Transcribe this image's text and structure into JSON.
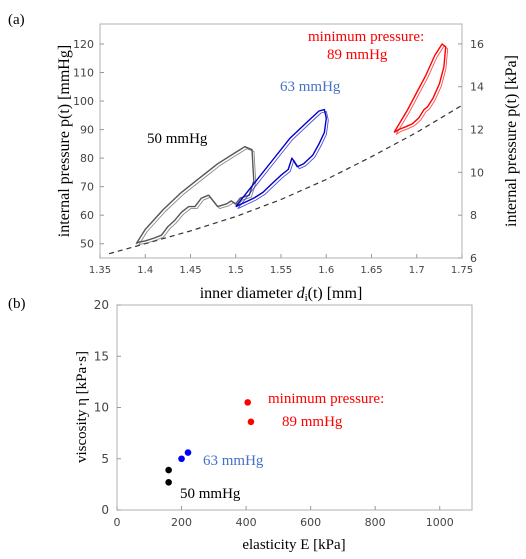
{
  "chart_data": [
    {
      "panel_label": "(a)",
      "type": "line",
      "xlabel_prefix": "inner diameter ",
      "xlabel_var": "d",
      "xlabel_sub": "i",
      "xlabel_suffix": "(t) [mm]",
      "ylabel_left": "internal pressure p(t) [mmHg]",
      "ylabel_right": "internal pressure p(t) [kPa]",
      "xlim": [
        1.35,
        1.75
      ],
      "ylim": [
        45,
        127
      ],
      "ylim_right": [
        6,
        16.93
      ],
      "xticks": [
        "1.35",
        "1.4",
        "1.45",
        "1.5",
        "1.55",
        "1.6",
        "1.65",
        "1.7",
        "1.75"
      ],
      "xtick_values": [
        1.35,
        1.4,
        1.45,
        1.5,
        1.55,
        1.6,
        1.65,
        1.7,
        1.75
      ],
      "yticks_left": [
        "50",
        "60",
        "70",
        "80",
        "90",
        "100",
        "110",
        "120"
      ],
      "ytick_left_values": [
        50,
        60,
        70,
        80,
        90,
        100,
        110,
        120
      ],
      "yticks_right": [
        "6",
        "8",
        "10",
        "12",
        "14",
        "16"
      ],
      "ytick_right_values": [
        6,
        8,
        10,
        12,
        14,
        16
      ],
      "annotations": [
        {
          "text": "50 mmHg",
          "color": "#000000"
        },
        {
          "text": "63 mmHg",
          "color": "#4472c4"
        },
        {
          "text": "minimum pressure:",
          "color": "#ff0000"
        },
        {
          "text": "89 mmHg",
          "color": "#ff0000"
        }
      ],
      "dashed_curve": {
        "x": [
          1.36,
          1.4,
          1.45,
          1.5,
          1.55,
          1.6,
          1.65,
          1.7,
          1.75
        ],
        "y": [
          46.5,
          50.0,
          54.5,
          59.5,
          65.5,
          72.5,
          80.5,
          89.0,
          98.5
        ]
      },
      "series": [
        {
          "color": "#555555",
          "x": [
            1.39,
            1.4,
            1.42,
            1.44,
            1.46,
            1.48,
            1.5,
            1.51,
            1.518,
            1.52,
            1.515,
            1.505,
            1.5,
            1.495,
            1.49,
            1.48,
            1.47,
            1.462,
            1.455,
            1.448,
            1.44,
            1.432,
            1.425,
            1.418,
            1.41,
            1.4,
            1.392,
            1.39
          ],
          "y": [
            50.0,
            55.0,
            62.0,
            68.0,
            73.0,
            78.0,
            82.0,
            84.0,
            83.0,
            72.0,
            67.0,
            66.0,
            64.0,
            65.0,
            64.0,
            63.0,
            67.0,
            66.0,
            63.0,
            63.0,
            61.0,
            58.0,
            56.0,
            53.0,
            52.0,
            51.0,
            50.5,
            50.0
          ]
        },
        {
          "color": "#0000cc",
          "x": [
            1.5,
            1.52,
            1.54,
            1.56,
            1.58,
            1.592,
            1.598,
            1.6,
            1.598,
            1.592,
            1.585,
            1.575,
            1.568,
            1.562,
            1.558,
            1.55,
            1.54,
            1.53,
            1.52,
            1.51,
            1.502,
            1.5
          ],
          "y": [
            63.0,
            71.0,
            79.0,
            87.0,
            93.0,
            96.5,
            97.0,
            94.0,
            89.0,
            85.0,
            81.0,
            78.0,
            77.0,
            80.0,
            76.0,
            74.0,
            71.0,
            68.0,
            66.0,
            64.5,
            63.3,
            63.0
          ]
        },
        {
          "color": "#ff0000",
          "x": [
            1.675,
            1.69,
            1.7,
            1.71,
            1.72,
            1.728,
            1.732,
            1.73,
            1.725,
            1.718,
            1.712,
            1.708,
            1.702,
            1.695,
            1.688,
            1.68,
            1.675
          ],
          "y": [
            89.0,
            97.0,
            103.0,
            109.0,
            116.0,
            120.0,
            119.0,
            112.0,
            106.0,
            101.0,
            98.0,
            97.0,
            94.0,
            92.0,
            91.0,
            90.0,
            89.0
          ]
        }
      ]
    },
    {
      "panel_label": "(b)",
      "type": "scatter",
      "xlabel": "elasticity E [kPa]",
      "ylabel": "viscosity η [kPa·s]",
      "xlim": [
        0,
        1100
      ],
      "ylim": [
        0,
        20
      ],
      "xticks": [
        "0",
        "200",
        "400",
        "600",
        "800",
        "1000"
      ],
      "xtick_values": [
        0,
        200,
        400,
        600,
        800,
        1000
      ],
      "yticks": [
        "0",
        "5",
        "10",
        "15",
        "20"
      ],
      "ytick_values": [
        0,
        5,
        10,
        15,
        20
      ],
      "annotations": [
        {
          "text": "50 mmHg",
          "color": "#000000"
        },
        {
          "text": "63 mmHg",
          "color": "#4472c4"
        },
        {
          "text": "minimum pressure:",
          "color": "#ff0000"
        },
        {
          "text": "89 mmHg",
          "color": "#ff0000"
        }
      ],
      "series": [
        {
          "color": "#000000",
          "x": [
            160,
            160
          ],
          "y": [
            3.9,
            2.7
          ]
        },
        {
          "color": "#0000ff",
          "x": [
            200,
            220
          ],
          "y": [
            5.0,
            5.6
          ]
        },
        {
          "color": "#ff0000",
          "x": [
            405,
            415
          ],
          "y": [
            10.5,
            8.6
          ]
        }
      ]
    }
  ]
}
